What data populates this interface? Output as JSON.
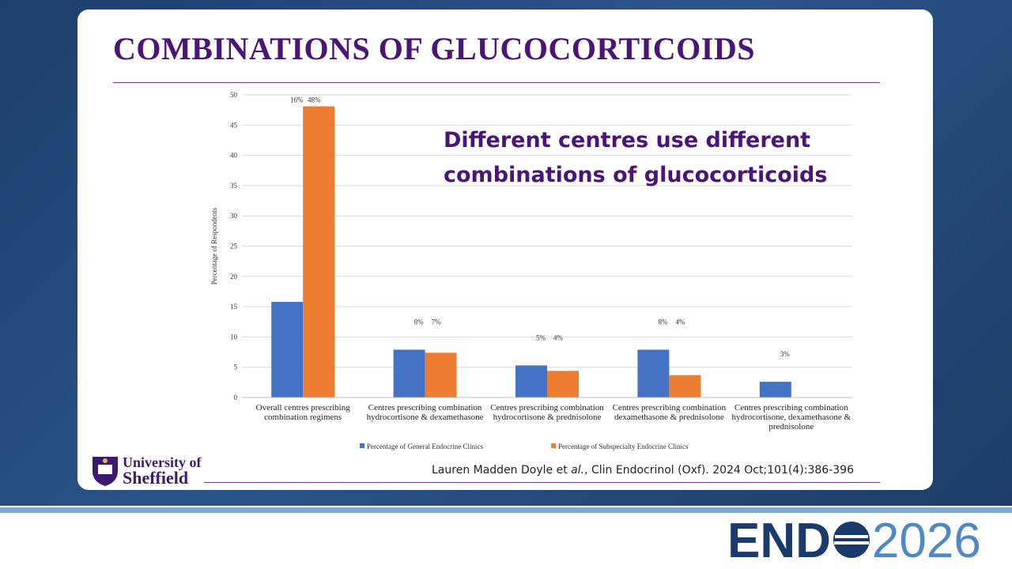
{
  "chart_data": {
    "type": "bar",
    "title": "COMBINATIONS OF GLUCOCORTICOIDS",
    "annotation": "Different centres use different combinations of glucocorticoids",
    "y_label": "Percentage of Respondents",
    "categories": [
      "Overall centres prescribing combination regimens",
      "Centres prescribing combination hydrocortisone & dexamethasone",
      "Centres prescribing combination hydrocortisone & prednisolone",
      "Centres prescribing combination dexamethasone & prednisolone",
      "Centres prescribing combination hydrocortisone, dexamethasone & prednisolone"
    ],
    "series": [
      {
        "name": "Percentage of General Endocrine Clinics",
        "color": "#4472c4",
        "values": [
          15.8,
          7.9,
          5.3,
          7.9,
          2.6
        ],
        "value_labels": [
          "16%",
          "8%",
          "5%",
          "8%",
          "3%"
        ]
      },
      {
        "name": "Percentage of Subspecialty Endocrine Clinics",
        "color": "#ed7d31",
        "values": [
          48.1,
          7.4,
          4.4,
          3.7,
          null
        ],
        "value_labels": [
          "48%",
          "7%",
          "4%",
          "4%",
          null
        ]
      }
    ],
    "ylim": [
      0,
      50
    ],
    "yticks": [
      0,
      5,
      10,
      15,
      20,
      25,
      30,
      35,
      40,
      45,
      50
    ],
    "grid": true,
    "legend": "bottom"
  },
  "slide": {
    "citation_before": "Lauren Madden Doyle et ",
    "citation_italic": "al.",
    "citation_after": ", Clin Endocrinol (Oxf). 2024 Oct;101(4):386-396",
    "university_line1": "University of",
    "university_line2": "Sheffield",
    "logo_end": "END",
    "logo_year": "2026"
  }
}
